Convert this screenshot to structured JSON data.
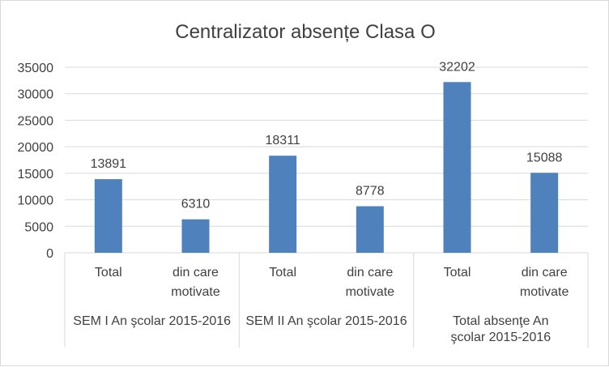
{
  "chart_data": {
    "type": "bar",
    "title": "Centralizator absențe Clasa O",
    "groups": [
      {
        "label": "SEM I An şcolar 2015-2016",
        "categories": [
          "Total",
          "din care motivate"
        ]
      },
      {
        "label": "SEM II An şcolar 2015-2016",
        "categories": [
          "Total",
          "din care motivate"
        ]
      },
      {
        "label": "Total absenţe An şcolar 2015-2016",
        "categories": [
          "Total",
          "din care motivate"
        ]
      }
    ],
    "series": [
      {
        "values": [
          13891,
          6310,
          18311,
          8778,
          32202,
          15088
        ]
      }
    ],
    "yticks": [
      0,
      5000,
      10000,
      15000,
      20000,
      25000,
      30000,
      35000
    ],
    "ylim": [
      0,
      35000
    ],
    "grid": true,
    "legend": "none",
    "data_labels": true,
    "bar_color": "#4f81bd",
    "grid_color": "#d9d9d9",
    "text_color": "#404040"
  }
}
